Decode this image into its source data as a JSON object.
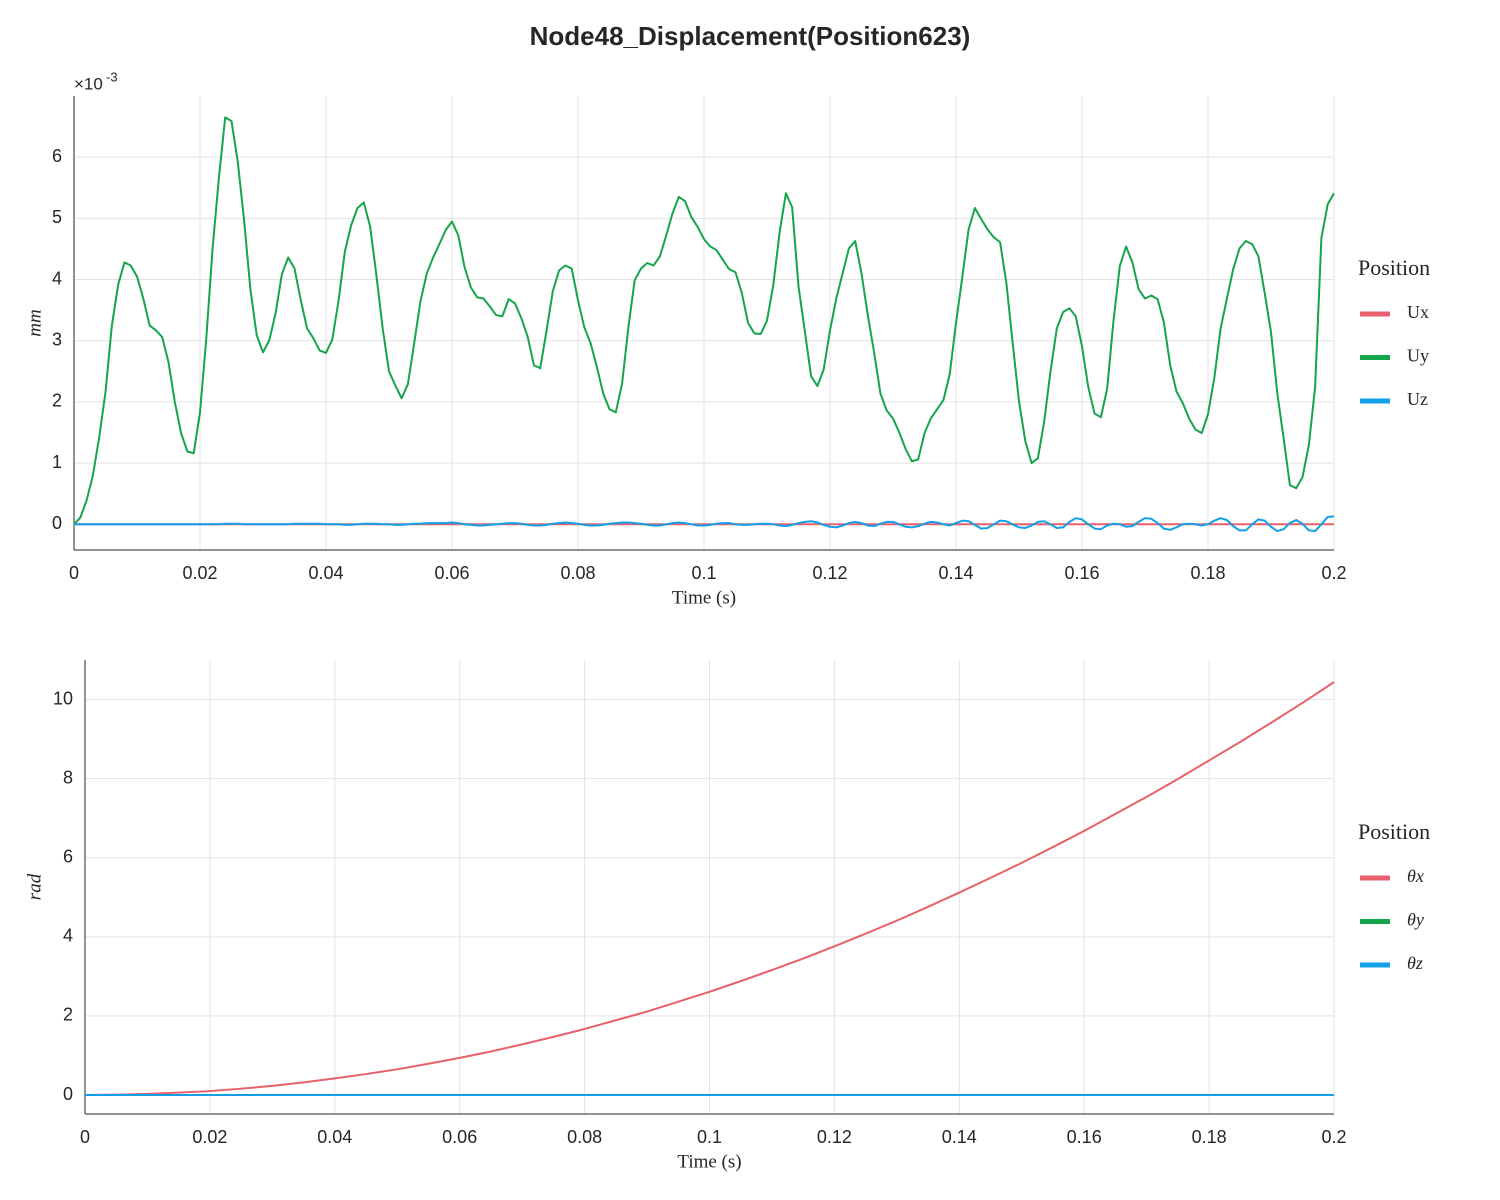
{
  "title": "Node48_Displacement(Position623)",
  "chart_data": [
    {
      "type": "line",
      "x": [
        0,
        0.001,
        0.002,
        0.003,
        0.004,
        0.005,
        0.006,
        0.007,
        0.008,
        0.009,
        0.01,
        0.011,
        0.012,
        0.013,
        0.014,
        0.015,
        0.016,
        0.017,
        0.018,
        0.019,
        0.02,
        0.021,
        0.022,
        0.023,
        0.024,
        0.025,
        0.026,
        0.027,
        0.028,
        0.029,
        0.03,
        0.031,
        0.032,
        0.033,
        0.034,
        0.035,
        0.036,
        0.037,
        0.038,
        0.039,
        0.04,
        0.041,
        0.042,
        0.043,
        0.044,
        0.045,
        0.046,
        0.047,
        0.048,
        0.049,
        0.05,
        0.051,
        0.052,
        0.053,
        0.054,
        0.055,
        0.056,
        0.057,
        0.058,
        0.059,
        0.06,
        0.061,
        0.062,
        0.063,
        0.064,
        0.065,
        0.066,
        0.067,
        0.068,
        0.069,
        0.07,
        0.071,
        0.072,
        0.073,
        0.074,
        0.075,
        0.076,
        0.077,
        0.078,
        0.079,
        0.08,
        0.081,
        0.082,
        0.083,
        0.084,
        0.085,
        0.086,
        0.087,
        0.088,
        0.089,
        0.09,
        0.091,
        0.092,
        0.093,
        0.094,
        0.095,
        0.096,
        0.097,
        0.098,
        0.099,
        0.1,
        0.101,
        0.102,
        0.103,
        0.104,
        0.105,
        0.106,
        0.107,
        0.108,
        0.109,
        0.11,
        0.111,
        0.112,
        0.113,
        0.114,
        0.115,
        0.116,
        0.117,
        0.118,
        0.119,
        0.12,
        0.121,
        0.122,
        0.123,
        0.124,
        0.125,
        0.126,
        0.127,
        0.128,
        0.129,
        0.13,
        0.131,
        0.132,
        0.133,
        0.134,
        0.135,
        0.136,
        0.137,
        0.138,
        0.139,
        0.14,
        0.141,
        0.142,
        0.143,
        0.144,
        0.145,
        0.146,
        0.147,
        0.148,
        0.149,
        0.15,
        0.151,
        0.152,
        0.153,
        0.154,
        0.155,
        0.156,
        0.157,
        0.158,
        0.159,
        0.16,
        0.161,
        0.162,
        0.163,
        0.164,
        0.165,
        0.166,
        0.167,
        0.168,
        0.169,
        0.17,
        0.171,
        0.172,
        0.173,
        0.174,
        0.175,
        0.176,
        0.177,
        0.178,
        0.179,
        0.18,
        0.181,
        0.182,
        0.183,
        0.184,
        0.185,
        0.186,
        0.187,
        0.188,
        0.189,
        0.19,
        0.191,
        0.192,
        0.193,
        0.194,
        0.195,
        0.196,
        0.197,
        0.198,
        0.199,
        0.2
      ],
      "series": [
        {
          "name": "Ux",
          "color": "#e8606a",
          "values": [
            0,
            0,
            0,
            0,
            0,
            0,
            0,
            0,
            0,
            0,
            0,
            0,
            0,
            0,
            0,
            0,
            0,
            0,
            0,
            0,
            0,
            0,
            0,
            0,
            0,
            0,
            0,
            0,
            0,
            0,
            0,
            0,
            0,
            0,
            0,
            0,
            0,
            0,
            0,
            0,
            0,
            0,
            0,
            0,
            0,
            0,
            0,
            0,
            0,
            0,
            0,
            0,
            0,
            0,
            0,
            0,
            0,
            0,
            0,
            0,
            0,
            0,
            0,
            0,
            0,
            0,
            0,
            0,
            0,
            0,
            0,
            0,
            0,
            0,
            0,
            0,
            0,
            0,
            0,
            0,
            0,
            0,
            0,
            0,
            0,
            0,
            0,
            0,
            0,
            0,
            0,
            0,
            0,
            0,
            0,
            0,
            0,
            0,
            0,
            0,
            0,
            0,
            0,
            0,
            0,
            0,
            0,
            0,
            0,
            0,
            0,
            0,
            0,
            0,
            0,
            0,
            0,
            0,
            0,
            0,
            0,
            0,
            0,
            0,
            0,
            0,
            0,
            0,
            0,
            0,
            0,
            0,
            0,
            0,
            0,
            0,
            0,
            0,
            0,
            0,
            0,
            0,
            0,
            0,
            0,
            0,
            0,
            0,
            0,
            0,
            0,
            0,
            0,
            0,
            0,
            0,
            0,
            0,
            0,
            0,
            0,
            0,
            0,
            0,
            0,
            0,
            0,
            0,
            0,
            0,
            0,
            0,
            0,
            0,
            0,
            0,
            0,
            0,
            0,
            0,
            0,
            0,
            0,
            0,
            0,
            0,
            0,
            0,
            0,
            0,
            0,
            0,
            0,
            0,
            0,
            0,
            0,
            0,
            0,
            0,
            0
          ]
        },
        {
          "name": "Uy",
          "color": "#15a54a",
          "values": [
            0,
            0.11,
            0.39,
            0.8,
            1.42,
            2.16,
            3.24,
            3.91,
            4.28,
            4.23,
            4.05,
            3.69,
            3.25,
            3.17,
            3.06,
            2.65,
            2.0,
            1.49,
            1.19,
            1.16,
            1.83,
            3.04,
            4.51,
            5.66,
            6.65,
            6.59,
            5.92,
            4.97,
            3.84,
            3.09,
            2.81,
            3.01,
            3.45,
            4.09,
            4.36,
            4.18,
            3.66,
            3.2,
            3.04,
            2.84,
            2.8,
            3.02,
            3.66,
            4.46,
            4.89,
            5.17,
            5.26,
            4.87,
            4.07,
            3.2,
            2.5,
            2.27,
            2.06,
            2.29,
            2.96,
            3.65,
            4.1,
            4.36,
            4.58,
            4.81,
            4.95,
            4.72,
            4.2,
            3.87,
            3.71,
            3.69,
            3.56,
            3.42,
            3.4,
            3.68,
            3.61,
            3.37,
            3.07,
            2.6,
            2.55,
            3.16,
            3.81,
            4.15,
            4.23,
            4.18,
            3.66,
            3.22,
            2.96,
            2.57,
            2.14,
            1.88,
            1.83,
            2.3,
            3.22,
            3.99,
            4.18,
            4.27,
            4.23,
            4.38,
            4.72,
            5.08,
            5.35,
            5.28,
            5.02,
            4.86,
            4.66,
            4.54,
            4.48,
            4.32,
            4.17,
            4.12,
            3.78,
            3.29,
            3.12,
            3.11,
            3.33,
            3.91,
            4.77,
            5.41,
            5.18,
            3.89,
            3.16,
            2.42,
            2.26,
            2.53,
            3.17,
            3.69,
            4.1,
            4.51,
            4.63,
            4.1,
            3.42,
            2.81,
            2.14,
            1.86,
            1.73,
            1.5,
            1.23,
            1.03,
            1.06,
            1.49,
            1.73,
            1.88,
            2.03,
            2.45,
            3.29,
            4.04,
            4.82,
            5.17,
            4.99,
            4.82,
            4.69,
            4.61,
            3.94,
            2.96,
            2.01,
            1.36,
            1.0,
            1.08,
            1.68,
            2.5,
            3.2,
            3.47,
            3.53,
            3.4,
            2.91,
            2.24,
            1.81,
            1.75,
            2.22,
            3.33,
            4.22,
            4.54,
            4.28,
            3.84,
            3.69,
            3.74,
            3.68,
            3.3,
            2.6,
            2.17,
            1.98,
            1.73,
            1.55,
            1.49,
            1.8,
            2.39,
            3.2,
            3.69,
            4.17,
            4.51,
            4.63,
            4.58,
            4.38,
            3.78,
            3.14,
            2.14,
            1.41,
            0.64,
            0.59,
            0.77,
            1.29,
            2.24,
            4.68,
            5.23,
            5.41
          ]
        },
        {
          "name": "Uz",
          "color": "#13a0e8",
          "values": [
            0,
            0,
            0,
            0,
            0,
            0,
            0,
            0,
            0,
            0,
            0,
            0,
            0,
            0,
            0,
            0,
            0,
            0,
            0,
            0,
            0,
            0,
            0,
            0,
            0.01,
            0.01,
            0.01,
            0,
            0,
            0,
            0,
            0,
            0,
            0,
            0,
            0.01,
            0.01,
            0.01,
            0.01,
            0.01,
            0,
            0,
            0,
            -0.01,
            -0.01,
            0,
            0.01,
            0.01,
            0.01,
            0,
            0,
            -0.01,
            -0.01,
            0,
            0.01,
            0.01,
            0.02,
            0.02,
            0.02,
            0.02,
            0.03,
            0.02,
            0,
            -0.01,
            -0.02,
            -0.02,
            -0.01,
            0,
            0.01,
            0.02,
            0.02,
            0.01,
            -0.01,
            -0.02,
            -0.02,
            -0.01,
            0.01,
            0.02,
            0.03,
            0.02,
            0.01,
            -0.01,
            -0.02,
            -0.02,
            -0.01,
            0.01,
            0.02,
            0.03,
            0.03,
            0.02,
            0.01,
            -0.01,
            -0.02,
            -0.02,
            0,
            0.02,
            0.03,
            0.02,
            0,
            -0.02,
            -0.02,
            -0.01,
            0.01,
            0.02,
            0.02,
            0,
            -0.01,
            -0.01,
            0,
            0.01,
            0.01,
            0,
            -0.02,
            -0.03,
            -0.01,
            0.02,
            0.04,
            0.05,
            0.03,
            -0.01,
            -0.04,
            -0.05,
            -0.02,
            0.02,
            0.04,
            0.02,
            -0.02,
            -0.03,
            0.01,
            0.04,
            0.04,
            0,
            -0.04,
            -0.05,
            -0.03,
            0.01,
            0.04,
            0.03,
            0,
            -0.02,
            0.02,
            0.06,
            0.05,
            -0.01,
            -0.07,
            -0.06,
            0,
            0.06,
            0.05,
            0,
            -0.05,
            -0.06,
            -0.02,
            0.04,
            0.05,
            0,
            -0.06,
            -0.05,
            0.04,
            0.1,
            0.08,
            0,
            -0.07,
            -0.08,
            -0.02,
            0.01,
            0,
            -0.04,
            -0.03,
            0.04,
            0.1,
            0.09,
            0.02,
            -0.07,
            -0.09,
            -0.05,
            0,
            0.01,
            0,
            -0.02,
            0,
            0.06,
            0.1,
            0.07,
            -0.03,
            -0.1,
            -0.1,
            0,
            0.08,
            0.06,
            -0.04,
            -0.11,
            -0.08,
            0.02,
            0.07,
            0.01,
            -0.1,
            -0.11,
            0,
            0.12,
            0.13
          ]
        }
      ],
      "xlim": [
        0,
        0.2
      ],
      "xticks": [
        0,
        0.02,
        0.04,
        0.06,
        0.08,
        0.1,
        0.12,
        0.14,
        0.16,
        0.18,
        0.2
      ],
      "ylim": [
        -0.42,
        7
      ],
      "yticks": [
        0,
        1,
        2,
        3,
        4,
        5,
        6
      ],
      "y_exponent": {
        "base": "×10",
        "power": "-3"
      },
      "xlabel": "Time (s)",
      "ylabel": "mm",
      "legend_title": "Position",
      "legend": "outside-right",
      "grid": true
    },
    {
      "type": "line",
      "x": [
        0,
        0.005,
        0.01,
        0.015,
        0.02,
        0.025,
        0.03,
        0.035,
        0.04,
        0.045,
        0.05,
        0.055,
        0.06,
        0.065,
        0.07,
        0.075,
        0.08,
        0.085,
        0.09,
        0.095,
        0.1,
        0.105,
        0.11,
        0.115,
        0.12,
        0.125,
        0.13,
        0.135,
        0.14,
        0.145,
        0.15,
        0.155,
        0.16,
        0.165,
        0.17,
        0.175,
        0.18,
        0.185,
        0.19,
        0.195,
        0.2
      ],
      "series": [
        {
          "name": "θx",
          "color": "#e8606a",
          "values": [
            0,
            0.01,
            0.03,
            0.06,
            0.1,
            0.16,
            0.23,
            0.32,
            0.42,
            0.53,
            0.65,
            0.79,
            0.94,
            1.1,
            1.28,
            1.47,
            1.67,
            1.89,
            2.11,
            2.36,
            2.61,
            2.88,
            3.16,
            3.45,
            3.76,
            4.08,
            4.41,
            4.76,
            5.12,
            5.49,
            5.87,
            6.27,
            6.68,
            7.11,
            7.54,
            7.99,
            8.46,
            8.93,
            9.42,
            9.92,
            10.44
          ]
        },
        {
          "name": "θy",
          "color": "#15a54a",
          "values": [
            0,
            0,
            0,
            0,
            0,
            0,
            0,
            0,
            0,
            0,
            0,
            0,
            0,
            0,
            0,
            0,
            0,
            0,
            0,
            0,
            0,
            0,
            0,
            0,
            0,
            0,
            0,
            0,
            0,
            0,
            0,
            0,
            0,
            0,
            0,
            0,
            0,
            0,
            0,
            0,
            0
          ]
        },
        {
          "name": "θz",
          "color": "#13a0e8",
          "values": [
            0,
            0,
            0,
            0,
            0,
            0,
            0,
            0,
            0,
            0,
            0,
            0,
            0,
            0,
            0,
            0,
            0,
            0,
            0,
            0,
            0,
            0,
            0,
            0,
            0,
            0,
            0,
            0,
            0,
            0,
            0,
            0,
            0,
            0,
            0,
            0,
            0,
            0,
            0,
            0,
            0
          ]
        }
      ],
      "xlim": [
        0,
        0.2
      ],
      "xticks": [
        0,
        0.02,
        0.04,
        0.06,
        0.08,
        0.1,
        0.12,
        0.14,
        0.16,
        0.18,
        0.2
      ],
      "ylim": [
        -0.48,
        11
      ],
      "yticks": [
        0,
        2,
        4,
        6,
        8,
        10
      ],
      "xlabel": "Time (s)",
      "ylabel": "rad",
      "legend_title": "Position",
      "legend": "outside-right",
      "grid": true
    }
  ]
}
